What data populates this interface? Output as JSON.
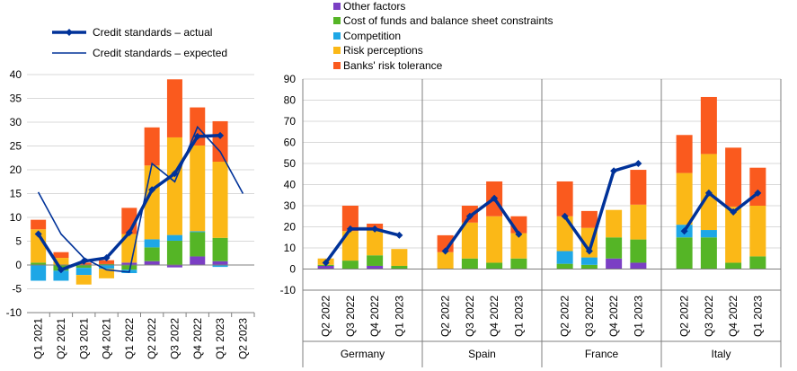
{
  "legend": {
    "actual_label": "Credit standards – actual",
    "expected_label": "Credit standards – expected",
    "factors": [
      {
        "name": "Other factors",
        "color": "#7b3fc4"
      },
      {
        "name": "Cost of funds and balance sheet constraints",
        "color": "#55b526"
      },
      {
        "name": "Competition",
        "color": "#1ea7e6"
      },
      {
        "name": "Risk perceptions",
        "color": "#fbb817"
      },
      {
        "name": "Banks' risk tolerance",
        "color": "#fa5a1e"
      }
    ]
  },
  "colors": {
    "line": "#003299",
    "grid": "#d9d9d9",
    "axis": "#7f7f7f"
  },
  "chart_data": [
    {
      "type": "bar",
      "stacked": true,
      "ylim": [
        -10,
        40
      ],
      "yticks": [
        -10,
        -5,
        0,
        5,
        10,
        15,
        20,
        25,
        30,
        35,
        40
      ],
      "categories": [
        "Q1 2021",
        "Q2 2021",
        "Q3 2021",
        "Q4 2021",
        "Q1 2022",
        "Q2 2022",
        "Q3 2022",
        "Q4 2022",
        "Q1 2023",
        "Q2 2023"
      ],
      "series": [
        {
          "name": "Other factors",
          "values": [
            0,
            0,
            0,
            0,
            0.5,
            0.8,
            -0.5,
            1.8,
            0.8,
            null
          ]
        },
        {
          "name": "Cost of funds and balance sheet constraints",
          "values": [
            0.5,
            -1.2,
            -0.6,
            0.2,
            -1.0,
            2.9,
            5.1,
            5.1,
            4.9,
            null
          ]
        },
        {
          "name": "Competition",
          "values": [
            -3.3,
            -2.1,
            -1.5,
            -0.8,
            -0.7,
            1.7,
            1.2,
            0.2,
            -0.4,
            null
          ]
        },
        {
          "name": "Risk perceptions",
          "values": [
            7.0,
            1.5,
            -2.0,
            -2.0,
            6.0,
            15.5,
            20.5,
            18.0,
            16.0,
            null
          ]
        },
        {
          "name": "Banks' risk tolerance",
          "values": [
            2.0,
            1.2,
            0.5,
            0.8,
            5.5,
            8.0,
            12.2,
            8.0,
            8.5,
            null
          ]
        }
      ],
      "lines": [
        {
          "name": "Credit standards – actual",
          "values": [
            6.5,
            -1.0,
            0.8,
            1.5,
            6.8,
            15.8,
            19.2,
            27.0,
            27.2,
            null
          ],
          "markers": true
        },
        {
          "name": "Credit standards – expected",
          "values": [
            15.3,
            6.5,
            1.5,
            -1.0,
            -1.5,
            21.3,
            17.5,
            29.0,
            23.8,
            15.0
          ],
          "markers": false
        }
      ]
    },
    {
      "type": "bar",
      "stacked": true,
      "ylim": [
        -10,
        90
      ],
      "yticks": [
        -10,
        0,
        10,
        20,
        30,
        40,
        50,
        60,
        70,
        80,
        90
      ],
      "groups": [
        {
          "name": "Germany",
          "categories": [
            "Q2 2022",
            "Q3 2022",
            "Q4 2022",
            "Q1 2023"
          ],
          "series": {
            "Other factors": [
              1.5,
              0.0,
              1.5,
              0.0
            ],
            "Cost of funds and balance sheet constraints": [
              0.5,
              4.0,
              5.0,
              1.5
            ],
            "Competition": [
              0.0,
              0.0,
              0.0,
              0.0
            ],
            "Risk perceptions": [
              3.0,
              14.0,
              12.0,
              8.0
            ],
            "Banks' risk tolerance": [
              0.0,
              12.0,
              3.0,
              0.0
            ]
          },
          "actual": [
            3.0,
            19.0,
            19.0,
            16.0
          ]
        },
        {
          "name": "Spain",
          "categories": [
            "Q2 2022",
            "Q3 2022",
            "Q4 2022",
            "Q1 2023"
          ],
          "series": {
            "Other factors": [
              0.0,
              0.0,
              0.0,
              0.0
            ],
            "Cost of funds and balance sheet constraints": [
              0.0,
              5.0,
              3.0,
              5.0
            ],
            "Competition": [
              0.0,
              0.0,
              0.0,
              0.0
            ],
            "Risk perceptions": [
              8.0,
              17.0,
              22.0,
              12.0
            ],
            "Banks' risk tolerance": [
              8.0,
              8.0,
              16.5,
              8.0
            ]
          },
          "actual": [
            8.5,
            25.0,
            33.5,
            16.5
          ]
        },
        {
          "name": "France",
          "categories": [
            "Q2 2022",
            "Q3 2022",
            "Q4 2022",
            "Q1 2023"
          ],
          "series": {
            "Other factors": [
              0.0,
              0.0,
              5.0,
              3.0
            ],
            "Cost of funds and balance sheet constraints": [
              2.5,
              2.0,
              10.0,
              11.0
            ],
            "Competition": [
              6.0,
              3.5,
              0.0,
              0.0
            ],
            "Risk perceptions": [
              16.5,
              14.0,
              13.0,
              16.5
            ],
            "Banks' risk tolerance": [
              16.5,
              8.0,
              0.0,
              16.5
            ]
          },
          "actual": [
            25.0,
            8.5,
            46.5,
            50.0
          ]
        },
        {
          "name": "Italy",
          "categories": [
            "Q2 2022",
            "Q3 2022",
            "Q4 2022",
            "Q1 2023"
          ],
          "series": {
            "Other factors": [
              0.0,
              0.0,
              0.0,
              0.0
            ],
            "Cost of funds and balance sheet constraints": [
              15.0,
              15.0,
              3.0,
              6.0
            ],
            "Competition": [
              6.0,
              3.5,
              0.0,
              0.0
            ],
            "Risk perceptions": [
              24.5,
              36.0,
              26.5,
              24.0
            ],
            "Banks' risk tolerance": [
              18.0,
              27.0,
              28.0,
              18.0
            ]
          },
          "actual": [
            18.0,
            36.0,
            27.0,
            36.0
          ]
        }
      ]
    }
  ]
}
